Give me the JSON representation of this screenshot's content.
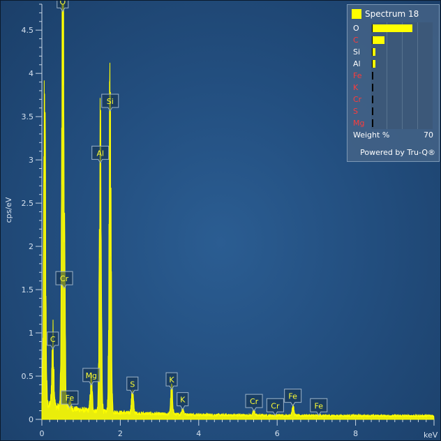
{
  "chart_data": {
    "type": "line",
    "xlabel": "keV",
    "ylabel": "cps/eV",
    "xlim": [
      0,
      10
    ],
    "ylim": [
      0,
      4.8
    ],
    "x_ticks": [
      "0",
      "2",
      "4",
      "6",
      "8"
    ],
    "y_ticks": [
      "0",
      "0.5",
      "1",
      "1.5",
      "2",
      "2.5",
      "3",
      "3.5",
      "4",
      "4.5"
    ],
    "grid": false,
    "series_color": "#ffff00",
    "peaks": [
      {
        "x": 0.07,
        "y": 3.45
      },
      {
        "x": 0.28,
        "y": 0.8
      },
      {
        "x": 0.53,
        "y": 4.7
      },
      {
        "x": 0.57,
        "y": 1.5
      },
      {
        "x": 0.71,
        "y": 0.12
      },
      {
        "x": 1.26,
        "y": 0.38
      },
      {
        "x": 1.49,
        "y": 2.95
      },
      {
        "x": 1.74,
        "y": 3.55
      },
      {
        "x": 2.31,
        "y": 0.28
      },
      {
        "x": 3.31,
        "y": 0.33
      },
      {
        "x": 3.59,
        "y": 0.1
      },
      {
        "x": 5.41,
        "y": 0.08
      },
      {
        "x": 5.95,
        "y": 0.03
      },
      {
        "x": 6.4,
        "y": 0.14
      },
      {
        "x": 7.06,
        "y": 0.03
      }
    ],
    "peak_labels": [
      {
        "text": "O",
        "x": 0.53,
        "y": 4.7
      },
      {
        "text": "Si",
        "x": 1.74,
        "y": 3.55
      },
      {
        "text": "Al",
        "x": 1.49,
        "y": 2.95
      },
      {
        "text": "Cr",
        "x": 0.57,
        "y": 1.5
      },
      {
        "text": "C",
        "x": 0.28,
        "y": 0.8
      },
      {
        "text": "Mg",
        "x": 1.26,
        "y": 0.38
      },
      {
        "text": "Fe",
        "x": 0.71,
        "y": 0.12
      },
      {
        "text": "S",
        "x": 2.31,
        "y": 0.28
      },
      {
        "text": "K",
        "x": 3.31,
        "y": 0.33
      },
      {
        "text": "K",
        "x": 3.59,
        "y": 0.1
      },
      {
        "text": "Cr",
        "x": 5.41,
        "y": 0.08
      },
      {
        "text": "Cr",
        "x": 5.95,
        "y": 0.03
      },
      {
        "text": "Fe",
        "x": 6.4,
        "y": 0.14
      },
      {
        "text": "Fe",
        "x": 7.06,
        "y": 0.03
      }
    ]
  },
  "legend": {
    "title": "Spectrum 18",
    "swatch_color": "#ffff00",
    "weight_label": "Weight %",
    "weight_max": "70",
    "scale_max": 70,
    "items": [
      {
        "element": "O",
        "value": 46,
        "color": "#ffffff"
      },
      {
        "element": "C",
        "value": 14,
        "color": "#ff3b3b"
      },
      {
        "element": "Si",
        "value": 3,
        "color": "#ffffff"
      },
      {
        "element": "Al",
        "value": 3,
        "color": "#ffffff"
      },
      {
        "element": "Fe",
        "value": 0,
        "color": "#ff3b3b"
      },
      {
        "element": "K",
        "value": 0,
        "color": "#ff3b3b"
      },
      {
        "element": "Cr",
        "value": 0,
        "color": "#ff3b3b"
      },
      {
        "element": "S",
        "value": 0,
        "color": "#ff3b3b"
      },
      {
        "element": "Mg",
        "value": 0,
        "color": "#ff3b3b"
      }
    ],
    "powered_by": "Powered by Tru-Q®"
  }
}
